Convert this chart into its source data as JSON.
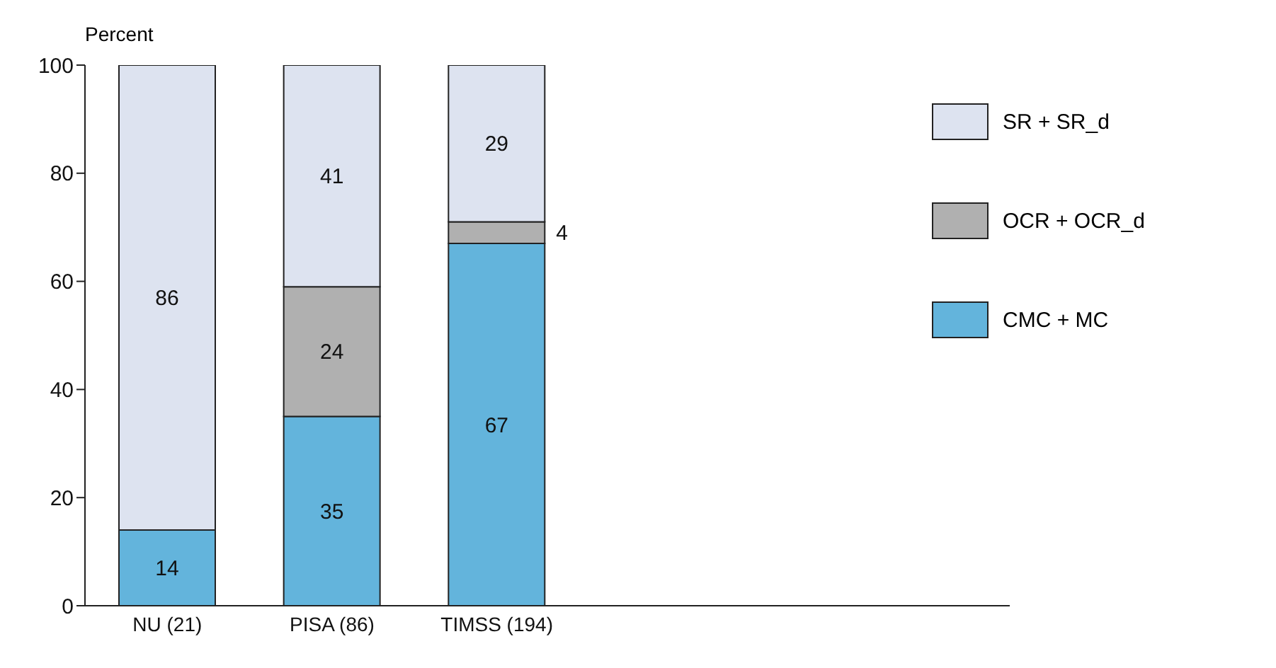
{
  "chart_data": {
    "type": "bar",
    "stacked": true,
    "ylabel": "Percent",
    "categories": [
      "NU (21)",
      "PISA (86)",
      "TIMSS (194)"
    ],
    "series": [
      {
        "name": "CMC + MC",
        "color": "#63b4dc",
        "values": [
          14,
          35,
          67
        ],
        "value_labels": [
          "14",
          "35",
          "67"
        ]
      },
      {
        "name": "OCR + OCR_d",
        "color": "#b0b0b0",
        "values": [
          0,
          24,
          4
        ],
        "value_labels": [
          null,
          "24",
          "4"
        ]
      },
      {
        "name": "SR + SR_d",
        "color": "#dde3f0",
        "values": [
          86,
          41,
          29
        ],
        "value_labels": [
          "86",
          "41",
          "29"
        ]
      }
    ],
    "ylim": [
      0,
      100
    ],
    "yticks": [
      0,
      20,
      40,
      60,
      80,
      100
    ],
    "grid": false,
    "legend": "right"
  }
}
